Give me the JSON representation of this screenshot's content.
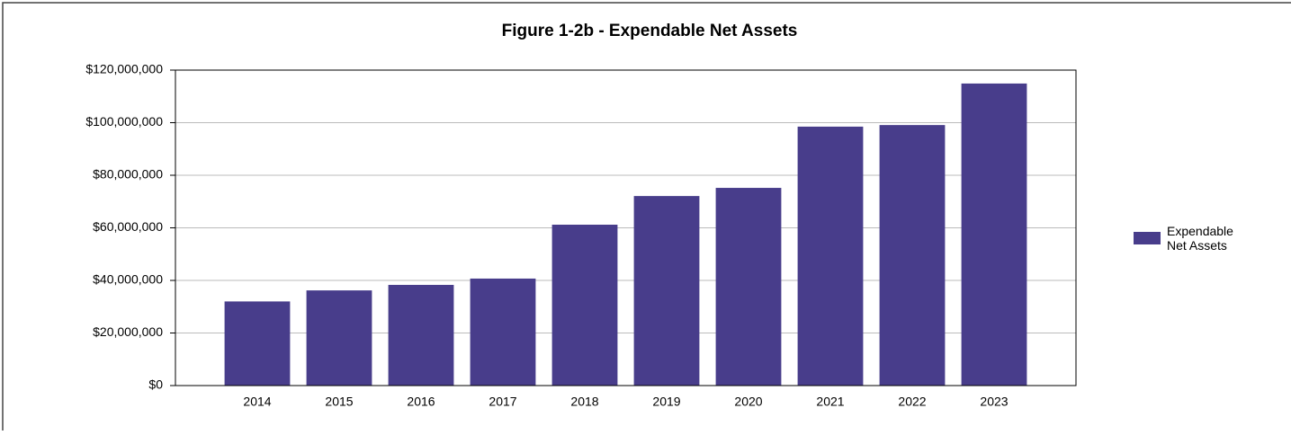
{
  "chart_data": {
    "type": "bar",
    "title": "Figure 1-2b - Expendable Net Assets",
    "categories": [
      "2014",
      "2015",
      "2016",
      "2017",
      "2018",
      "2019",
      "2020",
      "2021",
      "2022",
      "2023"
    ],
    "series": [
      {
        "name": "Expendable Net Assets",
        "color": "#483d8b",
        "values": [
          32000000,
          36200000,
          38300000,
          40700000,
          61200000,
          72100000,
          75200000,
          98500000,
          99100000,
          114900000
        ]
      }
    ],
    "ylim": [
      0,
      120000000
    ],
    "yticks": [
      {
        "value": 0,
        "label": "$0"
      },
      {
        "value": 20000000,
        "label": "$20,000,000"
      },
      {
        "value": 40000000,
        "label": "$40,000,000"
      },
      {
        "value": 60000000,
        "label": "$60,000,000"
      },
      {
        "value": 80000000,
        "label": "$80,000,000"
      },
      {
        "value": 100000000,
        "label": "$100,000,000"
      },
      {
        "value": 120000000,
        "label": "$120,000,000"
      }
    ],
    "grid": true,
    "legend": "right"
  }
}
